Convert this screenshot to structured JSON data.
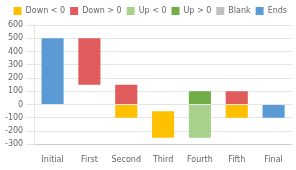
{
  "chart_data": {
    "type": "bar",
    "stacked": true,
    "categories": [
      "Initial",
      "First",
      "Second",
      "Third",
      "Fourth",
      "Fifth",
      "Final"
    ],
    "series": [
      {
        "name": "Down < 0",
        "color": "#ffc000",
        "values": [
          null,
          null,
          -100,
          -200,
          null,
          -100,
          null
        ]
      },
      {
        "name": "Down > 0",
        "color": "#e05c5c",
        "values": [
          null,
          350,
          150,
          null,
          null,
          100,
          null
        ]
      },
      {
        "name": "Up < 0",
        "color": "#a9d18e",
        "values": [
          null,
          null,
          null,
          null,
          -250,
          null,
          null
        ]
      },
      {
        "name": "Up > 0",
        "color": "#70ad47",
        "values": [
          null,
          null,
          null,
          null,
          100,
          null,
          null
        ]
      },
      {
        "name": "Blank",
        "color": "#bfbfbf",
        "colors": [
          "#00000000",
          "#00000000",
          "#00000000",
          "#00000000",
          "#00000000",
          "#00000000",
          "#00000000"
        ],
        "values": [
          null,
          150,
          null,
          -50,
          null,
          null,
          null
        ]
      },
      {
        "name": "Ends",
        "color": "#5b9bd5",
        "values": [
          500,
          null,
          null,
          null,
          null,
          null,
          -100
        ]
      }
    ],
    "ylim": [
      -300,
      600
    ],
    "yticks": [
      -300,
      -200,
      -100,
      0,
      100,
      200,
      300,
      400,
      500,
      600
    ],
    "grid": true,
    "legend": "upper right"
  }
}
